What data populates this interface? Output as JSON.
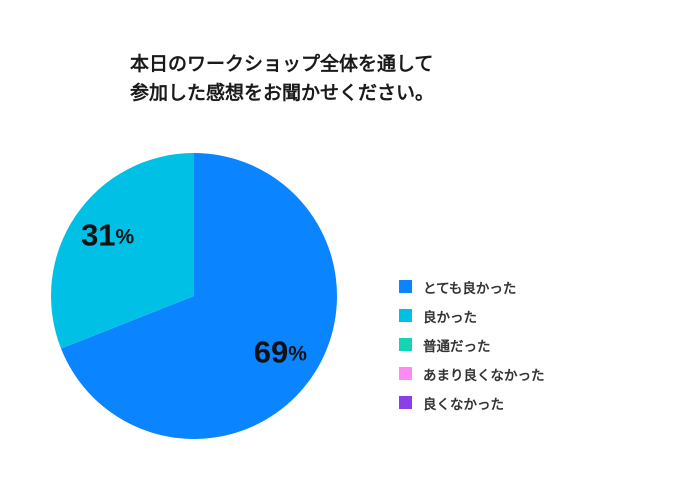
{
  "chart_data": {
    "type": "pie",
    "title": "本日のワークショップ全体を通して参加した感想をお聞かせください。",
    "title_lines": [
      "本日のワークショップ全体を通して",
      "参加した感想をお聞かせください。"
    ],
    "percent_symbol": "%",
    "series": [
      {
        "name": "とても良かった",
        "value": 69,
        "color": "#0a84ff"
      },
      {
        "name": "良かった",
        "value": 31,
        "color": "#00c0e6"
      },
      {
        "name": "普通だった",
        "value": 0,
        "color": "#13d5b4"
      },
      {
        "name": "あまり良くなかった",
        "value": 0,
        "color": "#ff8af4"
      },
      {
        "name": "良くなかった",
        "value": 0,
        "color": "#8a3fe8"
      }
    ],
    "legend_position": "right"
  }
}
